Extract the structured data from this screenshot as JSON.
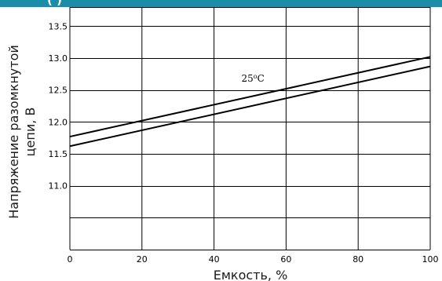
{
  "header": {
    "partial_text": "(  )",
    "band_color": "#1a8ea8"
  },
  "chart_data": {
    "type": "line",
    "xlabel": "Емкость, %",
    "ylabel_lines": [
      "Напряжение разомкнутой",
      "цепи, В"
    ],
    "xlim": [
      0,
      100
    ],
    "ylim": [
      10.0,
      13.8
    ],
    "x_ticks": [
      0,
      20,
      40,
      60,
      80,
      100
    ],
    "y_ticks": [
      11.0,
      11.5,
      12.0,
      12.5,
      13.0,
      13.5
    ],
    "x_tick_labels": [
      "0",
      "20",
      "40",
      "60",
      "80",
      "100"
    ],
    "y_tick_labels": [
      "11.0",
      "11.5",
      "12.0",
      "12.5",
      "13.0",
      "13.5"
    ],
    "y_grid": [
      10.0,
      10.5,
      11.0,
      11.5,
      12.0,
      12.5,
      13.0,
      13.5,
      13.8
    ],
    "grid": true,
    "annotation": {
      "text_main": "25",
      "text_super": "o",
      "text_end": "C",
      "x": 50,
      "y": 12.63
    },
    "series": [
      {
        "x": [
          0,
          100
        ],
        "y": [
          11.77,
          13.02
        ]
      },
      {
        "x": [
          0,
          100
        ],
        "y": [
          11.62,
          12.87
        ]
      }
    ]
  }
}
